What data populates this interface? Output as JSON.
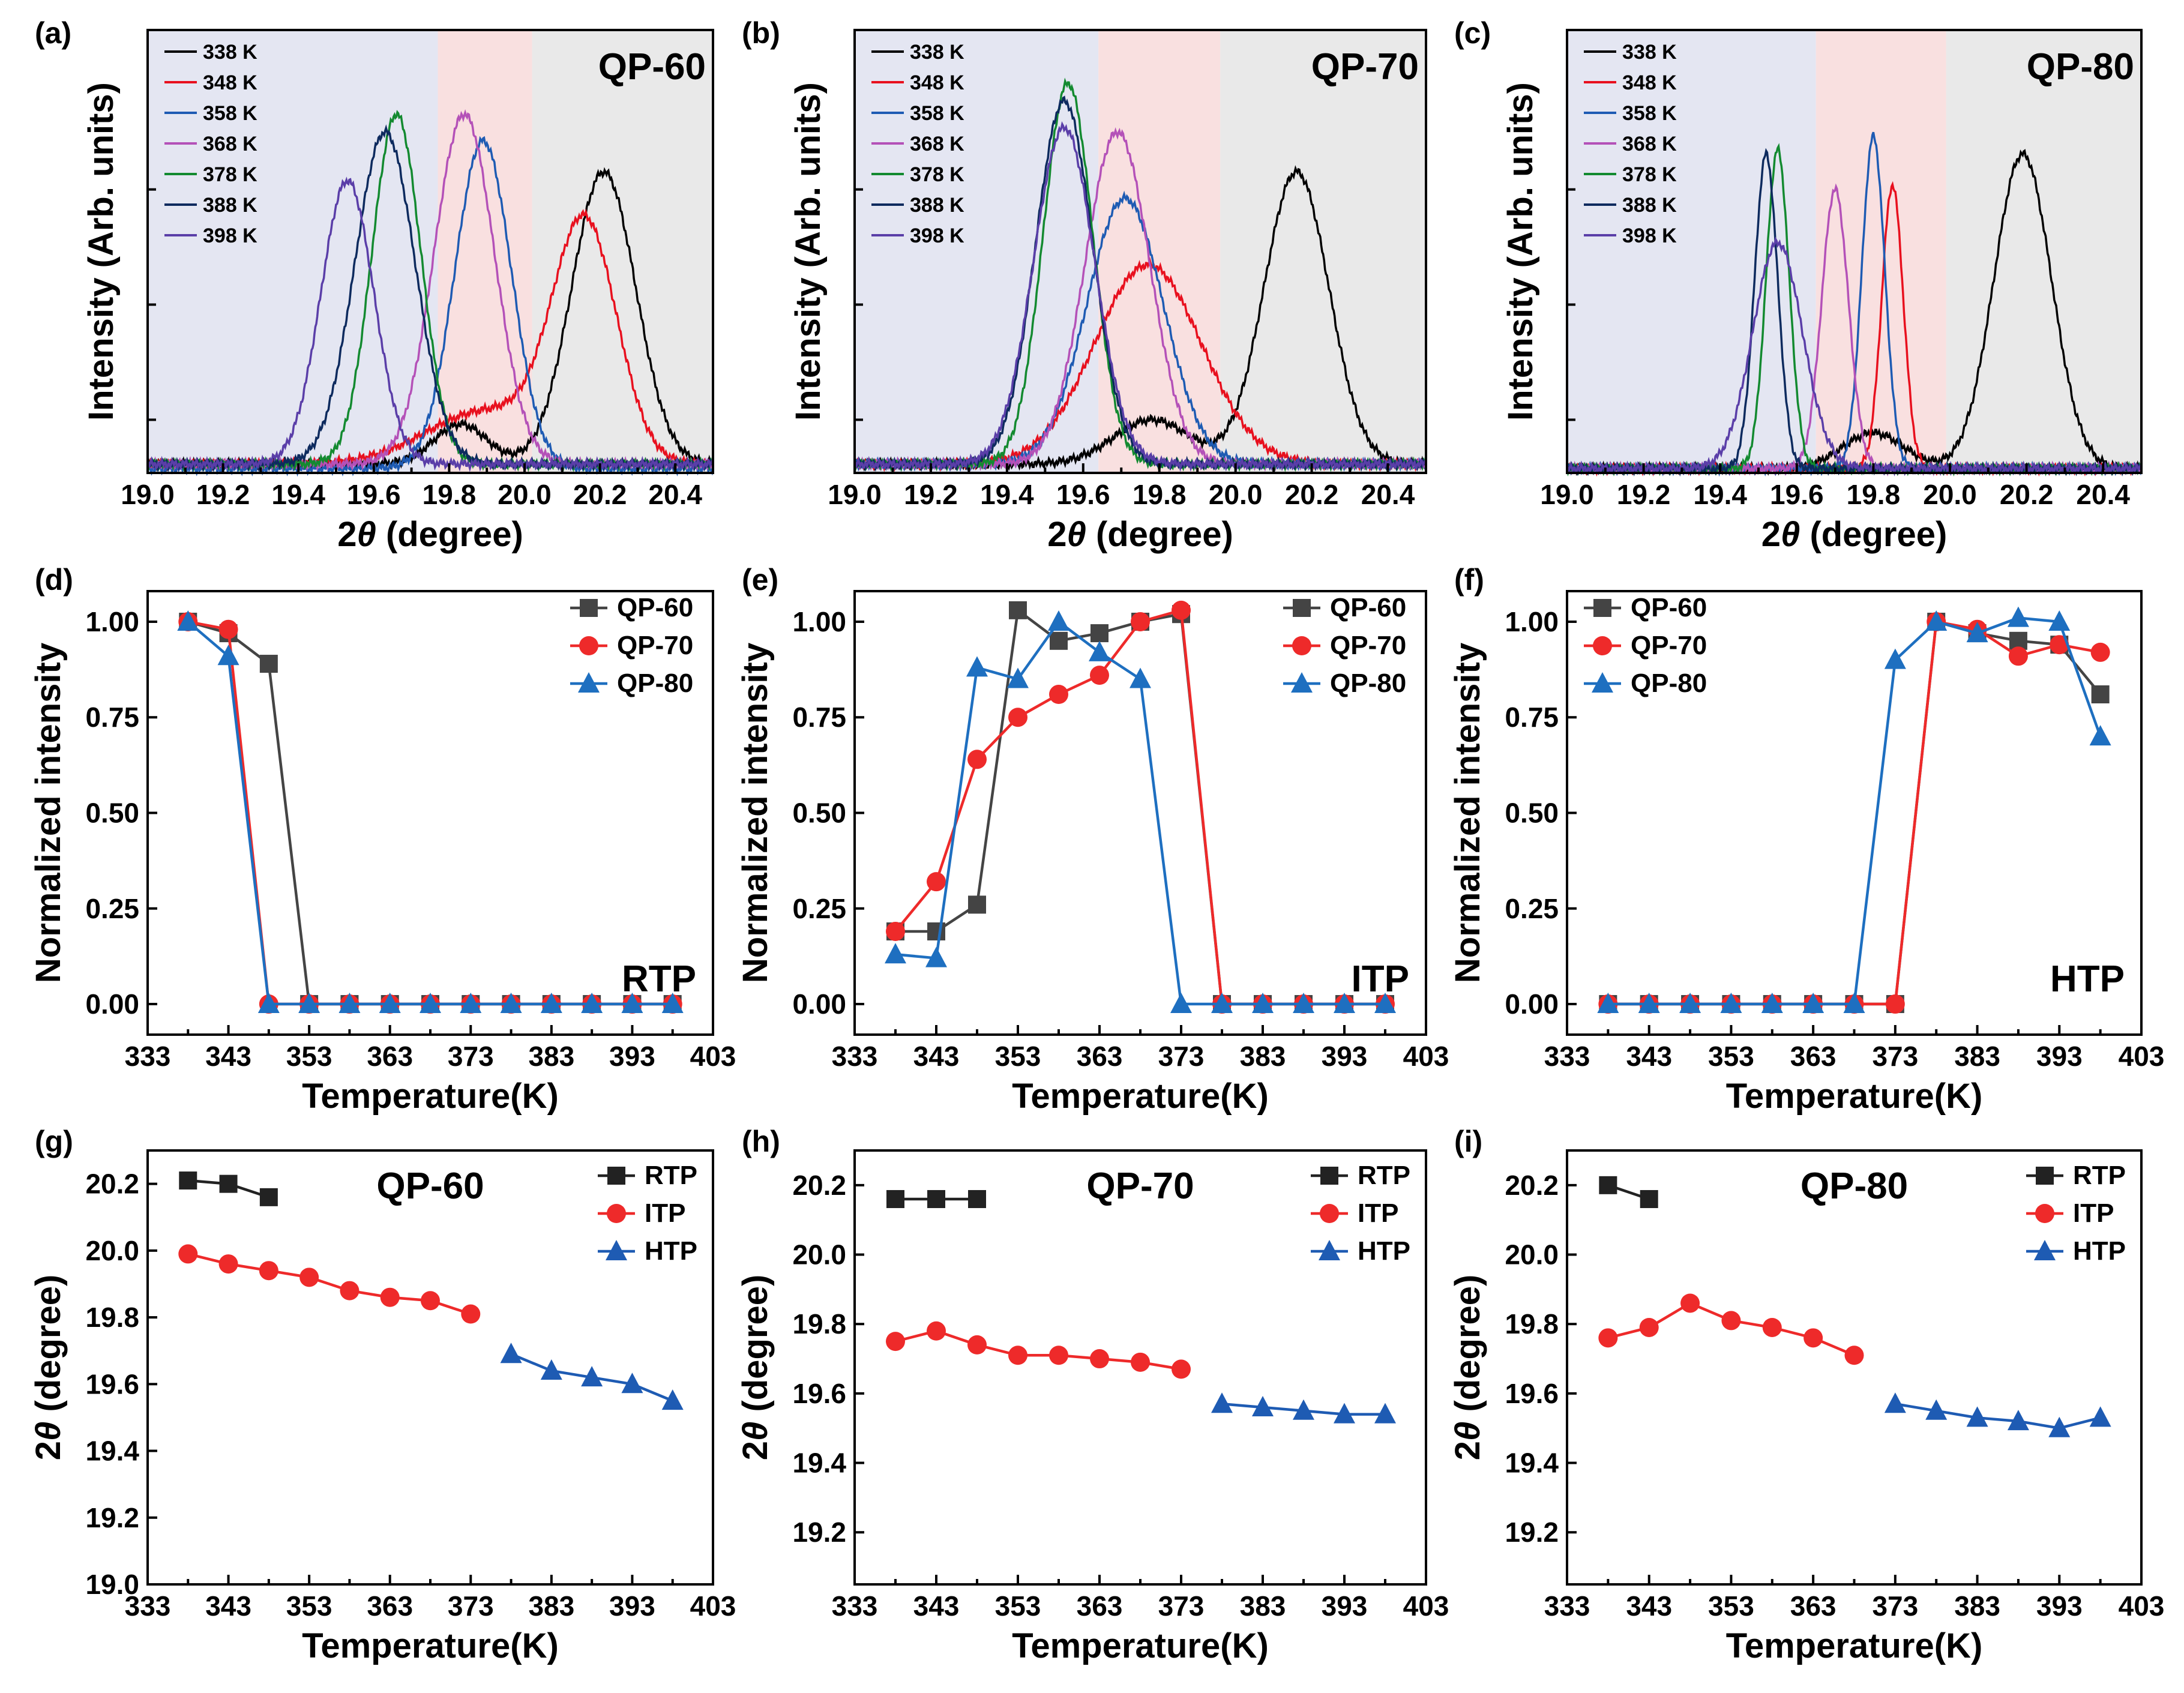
{
  "colors": {
    "K338": "#000000",
    "K348": "#e8101e",
    "K358": "#1e5bb3",
    "K368": "#b451b8",
    "K378": "#138a30",
    "K388": "#0d2a5e",
    "K398": "#5a3ea8",
    "RTP_bg": "#e4e6f2",
    "ITP_bg": "#f9e0e0",
    "HTP_bg": "#e9e9e9",
    "QP60": "#444444",
    "QP70": "#ee2a2a",
    "QP80": "#1e6fc0",
    "RTP": "#222222",
    "ITP": "#ee2a2a",
    "HTP": "#1e5bb3"
  },
  "xrd_panels": [
    {
      "label": "(a)",
      "sample": "QP-60"
    },
    {
      "label": "(b)",
      "sample": "QP-70"
    },
    {
      "label": "(c)",
      "sample": "QP-80"
    }
  ],
  "intensity_panels": [
    {
      "label": "(d)",
      "phase": "RTP"
    },
    {
      "label": "(e)",
      "phase": "ITP"
    },
    {
      "label": "(f)",
      "phase": "HTP"
    }
  ],
  "peak_panels": [
    {
      "label": "(g)",
      "sample": "QP-60"
    },
    {
      "label": "(h)",
      "sample": "QP-70"
    },
    {
      "label": "(i)",
      "sample": "QP-80"
    }
  ],
  "chart_data": [
    {
      "type": "line",
      "panel": "a",
      "title": "QP-60",
      "xlabel_prefix": "2",
      "xlabel_symbol": "θ",
      "xlabel_suffix": " (degree)",
      "ylabel": "Intensity (Arb. units)",
      "xlim": [
        19.0,
        20.5
      ],
      "xticks": [
        "19.0",
        "19.2",
        "19.4",
        "19.6",
        "19.8",
        "20.0",
        "20.2",
        "20.4"
      ],
      "regions": [
        {
          "phase": "RTP",
          "from": 19.0,
          "to": 19.77
        },
        {
          "phase": "ITP",
          "from": 19.77,
          "to": 20.02
        },
        {
          "phase": "HTP",
          "from": 20.02,
          "to": 20.5
        }
      ],
      "series": [
        {
          "name": "338 K",
          "baseline": 0.02,
          "peaks": [
            {
              "c": 20.21,
              "h": 0.66,
              "w": 0.085
            },
            {
              "c": 19.83,
              "h": 0.09,
              "w": 0.07
            }
          ]
        },
        {
          "name": "348 K",
          "baseline": 0.02,
          "peaks": [
            {
              "c": 20.16,
              "h": 0.53,
              "w": 0.085
            },
            {
              "c": 19.9,
              "h": 0.12,
              "w": 0.16
            }
          ]
        },
        {
          "name": "358 K",
          "baseline": 0.01,
          "peaks": [
            {
              "c": 19.89,
              "h": 0.74,
              "w": 0.075
            }
          ]
        },
        {
          "name": "368 K",
          "baseline": 0.02,
          "peaks": [
            {
              "c": 19.84,
              "h": 0.79,
              "w": 0.08
            }
          ]
        },
        {
          "name": "378 K",
          "baseline": 0.02,
          "peaks": [
            {
              "c": 19.66,
              "h": 0.79,
              "w": 0.065
            }
          ]
        },
        {
          "name": "388 K",
          "baseline": 0.02,
          "peaks": [
            {
              "c": 19.63,
              "h": 0.75,
              "w": 0.08
            }
          ]
        },
        {
          "name": "398 K",
          "baseline": 0.02,
          "peaks": [
            {
              "c": 19.53,
              "h": 0.64,
              "w": 0.07
            }
          ]
        }
      ]
    },
    {
      "type": "line",
      "panel": "b",
      "title": "QP-70",
      "xlabel_prefix": "2",
      "xlabel_symbol": "θ",
      "xlabel_suffix": " (degree)",
      "ylabel": "Intensity (Arb. units)",
      "xlim": [
        19.0,
        20.5
      ],
      "xticks": [
        "19.0",
        "19.2",
        "19.4",
        "19.6",
        "19.8",
        "20.0",
        "20.2",
        "20.4"
      ],
      "regions": [
        {
          "phase": "RTP",
          "from": 19.0,
          "to": 19.64
        },
        {
          "phase": "ITP",
          "from": 19.64,
          "to": 19.96
        },
        {
          "phase": "HTP",
          "from": 19.96,
          "to": 20.5
        }
      ],
      "series": [
        {
          "name": "338 K",
          "baseline": 0.02,
          "peaks": [
            {
              "c": 20.16,
              "h": 0.66,
              "w": 0.085
            },
            {
              "c": 19.78,
              "h": 0.1,
              "w": 0.1
            }
          ]
        },
        {
          "name": "348 K",
          "baseline": 0.02,
          "peaks": [
            {
              "c": 19.77,
              "h": 0.45,
              "w": 0.14
            }
          ]
        },
        {
          "name": "358 K",
          "baseline": 0.02,
          "peaks": [
            {
              "c": 19.71,
              "h": 0.6,
              "w": 0.1
            }
          ]
        },
        {
          "name": "368 K",
          "baseline": 0.02,
          "peaks": [
            {
              "c": 19.69,
              "h": 0.75,
              "w": 0.085
            }
          ]
        },
        {
          "name": "378 K",
          "baseline": 0.02,
          "peaks": [
            {
              "c": 19.56,
              "h": 0.86,
              "w": 0.065
            }
          ]
        },
        {
          "name": "388 K",
          "baseline": 0.02,
          "peaks": [
            {
              "c": 19.55,
              "h": 0.82,
              "w": 0.075
            }
          ]
        },
        {
          "name": "398 K",
          "baseline": 0.02,
          "peaks": [
            {
              "c": 19.55,
              "h": 0.76,
              "w": 0.08
            }
          ]
        }
      ]
    },
    {
      "type": "line",
      "panel": "c",
      "title": "QP-80",
      "xlabel_prefix": "2",
      "xlabel_symbol": "θ",
      "xlabel_suffix": " (degree)",
      "ylabel": "Intensity (Arb. units)",
      "xlim": [
        19.0,
        20.5
      ],
      "xticks": [
        "19.0",
        "19.2",
        "19.4",
        "19.6",
        "19.8",
        "20.0",
        "20.2",
        "20.4"
      ],
      "regions": [
        {
          "phase": "RTP",
          "from": 19.0,
          "to": 19.65
        },
        {
          "phase": "ITP",
          "from": 19.65,
          "to": 19.99
        },
        {
          "phase": "HTP",
          "from": 19.99,
          "to": 20.5
        }
      ],
      "series": [
        {
          "name": "338 K",
          "baseline": 0.01,
          "peaks": [
            {
              "c": 20.19,
              "h": 0.71,
              "w": 0.075
            },
            {
              "c": 19.8,
              "h": 0.08,
              "w": 0.08
            }
          ]
        },
        {
          "name": "348 K",
          "baseline": 0.01,
          "peaks": [
            {
              "c": 19.85,
              "h": 0.64,
              "w": 0.028
            }
          ]
        },
        {
          "name": "358 K",
          "baseline": 0.01,
          "peaks": [
            {
              "c": 19.8,
              "h": 0.75,
              "w": 0.03
            }
          ]
        },
        {
          "name": "368 K",
          "baseline": 0.01,
          "peaks": [
            {
              "c": 19.7,
              "h": 0.63,
              "w": 0.035
            }
          ]
        },
        {
          "name": "378 K",
          "baseline": 0.01,
          "peaks": [
            {
              "c": 19.55,
              "h": 0.72,
              "w": 0.03
            }
          ]
        },
        {
          "name": "388 K",
          "baseline": 0.01,
          "peaks": [
            {
              "c": 19.52,
              "h": 0.71,
              "w": 0.03
            }
          ]
        },
        {
          "name": "398 K",
          "baseline": 0.01,
          "peaks": [
            {
              "c": 19.55,
              "h": 0.51,
              "w": 0.065
            }
          ]
        }
      ]
    },
    {
      "type": "line",
      "panel": "d",
      "phase": "RTP",
      "xlabel": "Temperature(K)",
      "ylabel": "Normalized intensity",
      "xlim": [
        333,
        403
      ],
      "ylim": [
        -0.08,
        1.08
      ],
      "xticks": [
        333,
        343,
        353,
        363,
        373,
        383,
        393,
        403
      ],
      "yticks": [
        "0.00",
        "0.25",
        "0.50",
        "0.75",
        "1.00"
      ],
      "x": [
        338,
        343,
        348,
        353,
        358,
        363,
        368,
        373,
        378,
        383,
        388,
        393,
        398
      ],
      "series": [
        {
          "name": "QP-60",
          "marker": "square",
          "values": [
            1.0,
            0.97,
            0.89,
            0,
            0,
            0,
            0,
            0,
            0,
            0,
            0,
            0,
            0
          ]
        },
        {
          "name": "QP-70",
          "marker": "circle",
          "values": [
            1.0,
            0.98,
            0,
            0,
            0,
            0,
            0,
            0,
            0,
            0,
            0,
            0,
            0
          ]
        },
        {
          "name": "QP-80",
          "marker": "triangle",
          "values": [
            1.0,
            0.91,
            0,
            0,
            0,
            0,
            0,
            0,
            0,
            0,
            0,
            0,
            0
          ]
        }
      ]
    },
    {
      "type": "line",
      "panel": "e",
      "phase": "ITP",
      "xlabel": "Temperature(K)",
      "ylabel": "Normalized intensity",
      "xlim": [
        333,
        403
      ],
      "ylim": [
        -0.08,
        1.08
      ],
      "xticks": [
        333,
        343,
        353,
        363,
        373,
        383,
        393,
        403
      ],
      "yticks": [
        "0.00",
        "0.25",
        "0.50",
        "0.75",
        "1.00"
      ],
      "x": [
        338,
        343,
        348,
        353,
        358,
        363,
        368,
        373,
        378,
        383,
        388,
        393,
        398
      ],
      "series": [
        {
          "name": "QP-60",
          "marker": "square",
          "values": [
            0.19,
            0.19,
            0.26,
            1.03,
            0.95,
            0.97,
            1.0,
            1.02,
            0,
            0,
            0,
            0,
            0
          ]
        },
        {
          "name": "QP-70",
          "marker": "circle",
          "values": [
            0.19,
            0.32,
            0.64,
            0.75,
            0.81,
            0.86,
            1.0,
            1.03,
            0,
            0,
            0,
            0,
            0
          ]
        },
        {
          "name": "QP-80",
          "marker": "triangle",
          "values": [
            0.13,
            0.12,
            0.88,
            0.85,
            1.0,
            0.92,
            0.85,
            0,
            0,
            0,
            0,
            0,
            0
          ]
        }
      ]
    },
    {
      "type": "line",
      "panel": "f",
      "phase": "HTP",
      "xlabel": "Temperature(K)",
      "ylabel": "Normalized intensity",
      "xlim": [
        333,
        403
      ],
      "ylim": [
        -0.08,
        1.08
      ],
      "xticks": [
        333,
        343,
        353,
        363,
        373,
        383,
        393,
        403
      ],
      "yticks": [
        "0.00",
        "0.25",
        "0.50",
        "0.75",
        "1.00"
      ],
      "x": [
        338,
        343,
        348,
        353,
        358,
        363,
        368,
        373,
        378,
        383,
        388,
        393,
        398
      ],
      "series": [
        {
          "name": "QP-60",
          "marker": "square",
          "values": [
            0,
            0,
            0,
            0,
            0,
            0,
            0,
            0,
            1.0,
            0.97,
            0.95,
            0.94,
            0.81
          ]
        },
        {
          "name": "QP-70",
          "marker": "circle",
          "values": [
            0,
            0,
            0,
            0,
            0,
            0,
            0,
            0,
            1.0,
            0.98,
            0.91,
            0.94,
            0.92
          ]
        },
        {
          "name": "QP-80",
          "marker": "triangle",
          "values": [
            0,
            0,
            0,
            0,
            0,
            0,
            0,
            0.9,
            1.0,
            0.97,
            1.01,
            1.0,
            0.7
          ]
        }
      ]
    },
    {
      "type": "line",
      "panel": "g",
      "title": "QP-60",
      "xlabel": "Temperature(K)",
      "ylabel_prefix": "2",
      "ylabel_symbol": "θ",
      "ylabel_suffix": " (degree)",
      "xlim": [
        333,
        403
      ],
      "ylim": [
        19.0,
        20.3
      ],
      "xticks": [
        333,
        343,
        353,
        363,
        373,
        383,
        393,
        403
      ],
      "yticks": [
        "19.0",
        "19.2",
        "19.4",
        "19.6",
        "19.8",
        "20.0",
        "20.2"
      ],
      "series": [
        {
          "name": "RTP",
          "marker": "square",
          "x": [
            338,
            343,
            348
          ],
          "values": [
            20.21,
            20.2,
            20.16
          ]
        },
        {
          "name": "ITP",
          "marker": "circle",
          "x": [
            338,
            343,
            348,
            353,
            358,
            363,
            368,
            373
          ],
          "values": [
            19.99,
            19.96,
            19.94,
            19.92,
            19.88,
            19.86,
            19.85,
            19.81
          ]
        },
        {
          "name": "HTP",
          "marker": "triangle",
          "x": [
            378,
            383,
            388,
            393,
            398
          ],
          "values": [
            19.69,
            19.64,
            19.62,
            19.6,
            19.55
          ]
        }
      ]
    },
    {
      "type": "line",
      "panel": "h",
      "title": "QP-70",
      "xlabel": "Temperature(K)",
      "ylabel_prefix": "2",
      "ylabel_symbol": "θ",
      "ylabel_suffix": " (degree)",
      "xlim": [
        333,
        403
      ],
      "ylim": [
        19.05,
        20.3
      ],
      "xticks": [
        333,
        343,
        353,
        363,
        373,
        383,
        393,
        403
      ],
      "yticks": [
        "19.2",
        "19.4",
        "19.6",
        "19.8",
        "20.0",
        "20.2"
      ],
      "series": [
        {
          "name": "RTP",
          "marker": "square",
          "x": [
            338,
            343,
            348
          ],
          "values": [
            20.16,
            20.16,
            20.16
          ]
        },
        {
          "name": "ITP",
          "marker": "circle",
          "x": [
            338,
            343,
            348,
            353,
            358,
            363,
            368,
            373
          ],
          "values": [
            19.75,
            19.78,
            19.74,
            19.71,
            19.71,
            19.7,
            19.69,
            19.67
          ]
        },
        {
          "name": "HTP",
          "marker": "triangle",
          "x": [
            378,
            383,
            388,
            393,
            398
          ],
          "values": [
            19.57,
            19.56,
            19.55,
            19.54,
            19.54
          ]
        }
      ]
    },
    {
      "type": "line",
      "panel": "i",
      "title": "QP-80",
      "xlabel": "Temperature(K)",
      "ylabel_prefix": "2",
      "ylabel_symbol": "θ",
      "ylabel_suffix": " (degree)",
      "xlim": [
        333,
        403
      ],
      "ylim": [
        19.05,
        20.3
      ],
      "xticks": [
        333,
        343,
        353,
        363,
        373,
        383,
        393,
        403
      ],
      "yticks": [
        "19.2",
        "19.4",
        "19.6",
        "19.8",
        "20.0",
        "20.2"
      ],
      "series": [
        {
          "name": "RTP",
          "marker": "square",
          "x": [
            338,
            343
          ],
          "values": [
            20.2,
            20.16
          ]
        },
        {
          "name": "ITP",
          "marker": "circle",
          "x": [
            338,
            343,
            348,
            353,
            358,
            363,
            368
          ],
          "values": [
            19.76,
            19.79,
            19.86,
            19.81,
            19.79,
            19.76,
            19.71
          ]
        },
        {
          "name": "HTP",
          "marker": "triangle",
          "x": [
            373,
            378,
            383,
            388,
            393,
            398
          ],
          "values": [
            19.57,
            19.55,
            19.53,
            19.52,
            19.5,
            19.53
          ]
        }
      ]
    }
  ]
}
